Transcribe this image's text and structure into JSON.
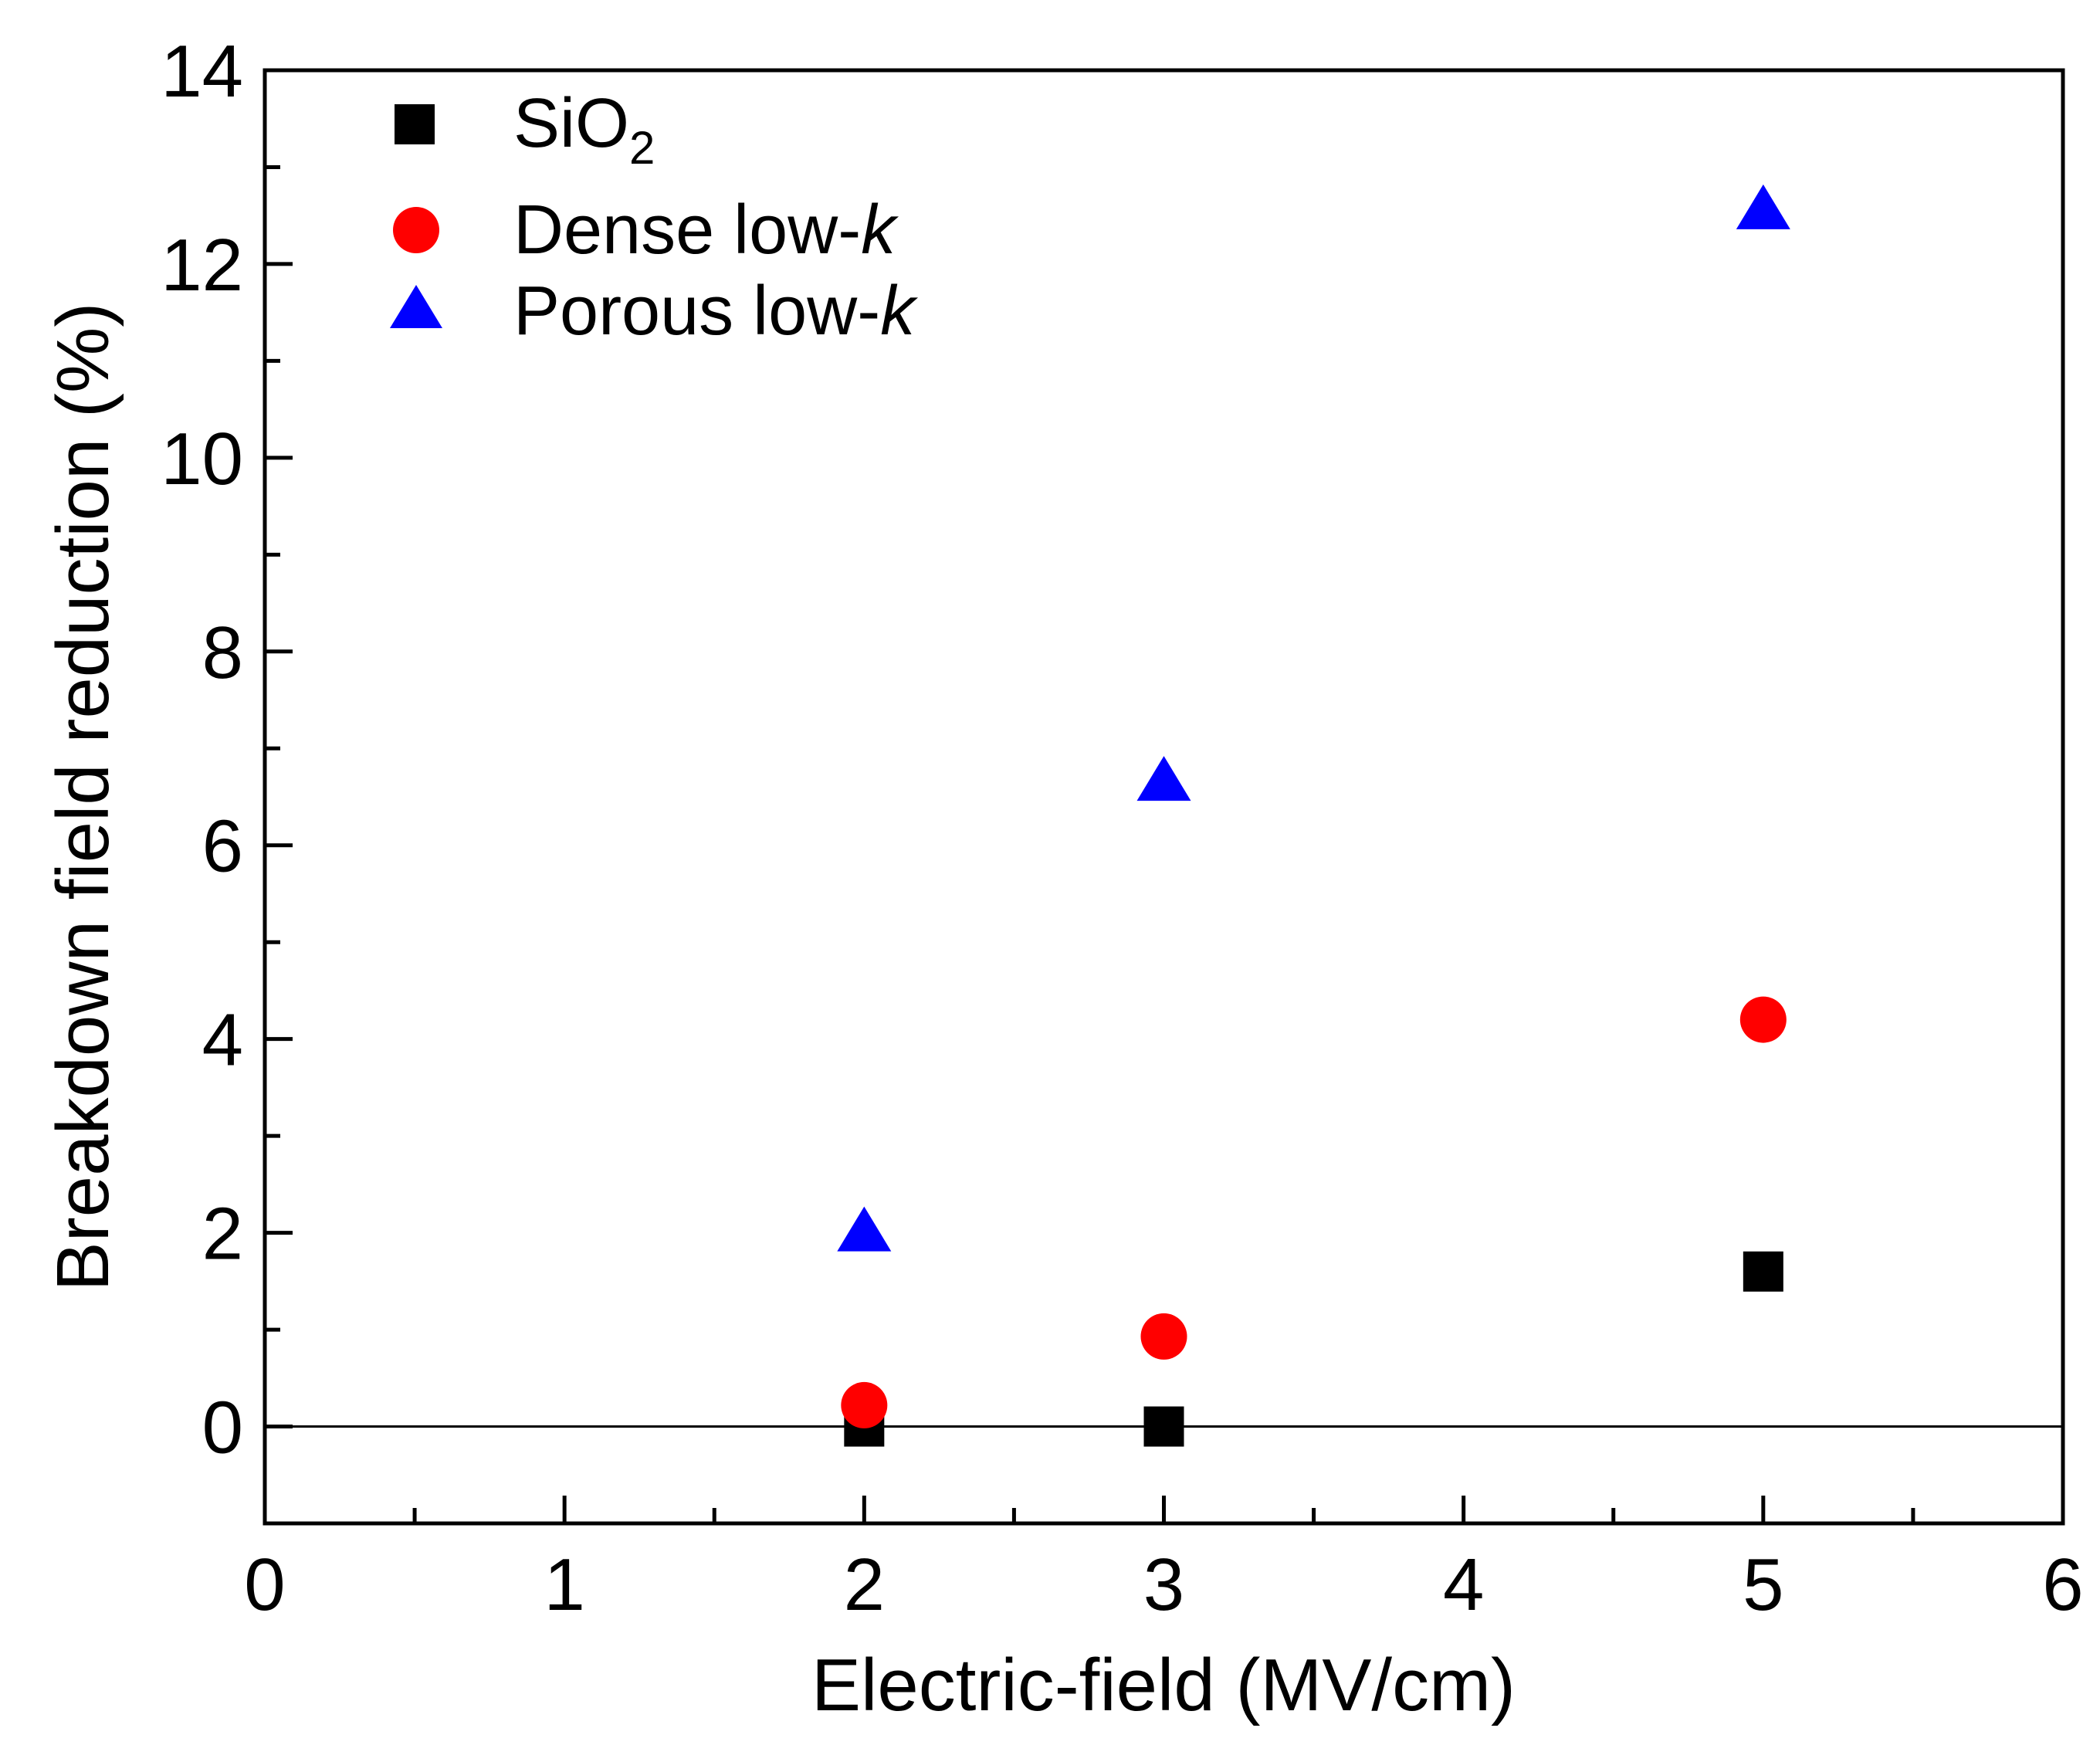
{
  "chart_data": {
    "type": "scatter",
    "title": "",
    "xlabel": "Electric-field (MV/cm)",
    "ylabel": "Breakdown field reduction (%)",
    "xlim": [
      0,
      6
    ],
    "ylim": [
      -1,
      14
    ],
    "xticks": [
      0,
      1,
      2,
      3,
      4,
      5,
      6
    ],
    "yticks": [
      0,
      2,
      4,
      6,
      8,
      10,
      12,
      14
    ],
    "xtick_labels": [
      "0",
      "1",
      "2",
      "3",
      "4",
      "5",
      "6"
    ],
    "ytick_labels": [
      "0",
      "2",
      "4",
      "6",
      "8",
      "10",
      "12",
      "14"
    ],
    "grid": false,
    "reference_line_y": 0,
    "legend_position": "top-left",
    "series": [
      {
        "name": "SiO2",
        "label_main": "SiO",
        "label_sub": "2",
        "marker": "square",
        "color": "#000000",
        "x": [
          2,
          3,
          5
        ],
        "y": [
          0.0,
          0.0,
          1.6
        ]
      },
      {
        "name": "Dense low-k",
        "label_main": "Dense low-",
        "label_italic": "k",
        "marker": "circle",
        "color": "#ff0000",
        "x": [
          2,
          3,
          5
        ],
        "y": [
          0.22,
          0.93,
          4.2
        ]
      },
      {
        "name": "Porous low-k",
        "label_main": "Porous low-",
        "label_italic": "k",
        "marker": "triangle",
        "color": "#0000ff",
        "x": [
          2,
          3,
          5
        ],
        "y": [
          2.0,
          6.65,
          12.55
        ]
      }
    ]
  }
}
